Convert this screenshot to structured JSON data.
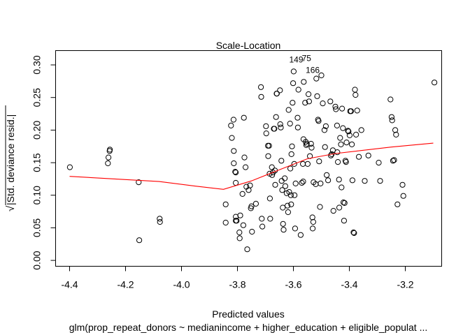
{
  "chart_data": {
    "type": "scatter",
    "title": "Scale-Location",
    "xlabel": "Predicted values",
    "subtitle": "glm(prop_repeat_donors ~ medianincome + higher_education + eligible_populat ...",
    "ylabel_radical": "√",
    "ylabel_text": "|Std. deviance resid.|",
    "xlim": [
      -4.45,
      -3.07
    ],
    "ylim": [
      -0.009,
      0.322
    ],
    "x_ticks": [
      -4.4,
      -4.2,
      -4.0,
      -3.8,
      -3.6,
      -3.4,
      -3.2
    ],
    "x_tick_labels": [
      "-4.4",
      "-4.2",
      "-4.0",
      "-3.8",
      "-3.6",
      "-3.4",
      "-3.2"
    ],
    "y_ticks": [
      0.0,
      0.05,
      0.1,
      0.15,
      0.2,
      0.25,
      0.3
    ],
    "y_tick_labels": [
      "0.00",
      "0.05",
      "0.10",
      "0.15",
      "0.20",
      "0.25",
      "0.30"
    ],
    "point_color": "#000000",
    "smooth_color": "#ff0000",
    "annotations": [
      {
        "label": "149",
        "x": -3.59,
        "y": 0.308
      },
      {
        "label": "75",
        "x": -3.553,
        "y": 0.31
      },
      {
        "label": "166",
        "x": -3.531,
        "y": 0.292
      }
    ],
    "smooth": {
      "x": [
        -4.4,
        -4.2,
        -4.08,
        -3.95,
        -3.85,
        -3.75,
        -3.65,
        -3.55,
        -3.45,
        -3.35,
        -3.25,
        -3.1
      ],
      "y": [
        0.129,
        0.124,
        0.121,
        0.114,
        0.109,
        0.122,
        0.139,
        0.156,
        0.164,
        0.169,
        0.174,
        0.18
      ]
    },
    "points": [
      [
        -4.399,
        0.143
      ],
      [
        -4.263,
        0.149
      ],
      [
        -4.261,
        0.158
      ],
      [
        -4.257,
        0.168
      ],
      [
        -4.256,
        0.17
      ],
      [
        -4.153,
        0.12
      ],
      [
        -4.151,
        0.031
      ],
      [
        -4.078,
        0.064
      ],
      [
        -4.077,
        0.059
      ],
      [
        -3.842,
        0.086
      ],
      [
        -3.842,
        0.058
      ],
      [
        -3.823,
        0.207
      ],
      [
        -3.82,
        0.188
      ],
      [
        -3.814,
        0.216
      ],
      [
        -3.813,
        0.168
      ],
      [
        -3.813,
        0.149
      ],
      [
        -3.808,
        0.136
      ],
      [
        -3.806,
        0.135
      ],
      [
        -3.806,
        0.119
      ],
      [
        -3.806,
        0.067
      ],
      [
        -3.806,
        0.061
      ],
      [
        -3.803,
        0.061
      ],
      [
        -3.793,
        0.043
      ],
      [
        -3.792,
        0.034
      ],
      [
        -3.79,
        0.069
      ],
      [
        -3.782,
        0.102
      ],
      [
        -3.779,
        0.054
      ],
      [
        -3.777,
        0.219
      ],
      [
        -3.775,
        0.158
      ],
      [
        -3.771,
        0.143
      ],
      [
        -3.768,
        0.113
      ],
      [
        -3.765,
        0.017
      ],
      [
        -3.76,
        0.108
      ],
      [
        -3.755,
        0.115
      ],
      [
        -3.752,
        0.08
      ],
      [
        -3.75,
        0.083
      ],
      [
        -3.748,
        0.044
      ],
      [
        -3.734,
        0.087
      ],
      [
        -3.716,
        0.266
      ],
      [
        -3.715,
        0.251
      ],
      [
        -3.713,
        0.064
      ],
      [
        -3.711,
        0.052
      ],
      [
        -3.698,
        0.206
      ],
      [
        -3.697,
        0.195
      ],
      [
        -3.691,
        0.176
      ],
      [
        -3.69,
        0.16
      ],
      [
        -3.687,
        0.176
      ],
      [
        -3.685,
        0.133
      ],
      [
        -3.684,
        0.095
      ],
      [
        -3.683,
        0.064
      ],
      [
        -3.677,
        0.143
      ],
      [
        -3.676,
        0.131
      ],
      [
        -3.673,
        0.135
      ],
      [
        -3.67,
        0.202
      ],
      [
        -3.668,
        0.202
      ],
      [
        -3.666,
        0.138
      ],
      [
        -3.665,
        0.116
      ],
      [
        -3.662,
        0.22
      ],
      [
        -3.66,
        0.256
      ],
      [
        -3.659,
        0.256
      ],
      [
        -3.648,
        0.261
      ],
      [
        -3.647,
        0.209
      ],
      [
        -3.645,
        0.204
      ],
      [
        -3.643,
        0.153
      ],
      [
        -3.642,
        0.122
      ],
      [
        -3.64,
        0.108
      ],
      [
        -3.638,
        0.081
      ],
      [
        -3.637,
        0.056
      ],
      [
        -3.635,
        0.047
      ],
      [
        -3.631,
        0.126
      ],
      [
        -3.629,
        0.114
      ],
      [
        -3.624,
        0.103
      ],
      [
        -3.621,
        0.084
      ],
      [
        -3.619,
        0.074
      ],
      [
        -3.617,
        0.231
      ],
      [
        -3.615,
        0.105
      ],
      [
        -3.612,
        0.21
      ],
      [
        -3.611,
        0.141
      ],
      [
        -3.609,
        0.1
      ],
      [
        -3.608,
        0.086
      ],
      [
        -3.607,
        0.163
      ],
      [
        -3.605,
        0.175
      ],
      [
        -3.603,
        0.242
      ],
      [
        -3.601,
        0.272
      ],
      [
        -3.599,
        0.29
      ],
      [
        -3.597,
        0.148
      ],
      [
        -3.596,
        0.1
      ],
      [
        -3.594,
        0.049
      ],
      [
        -3.592,
        0.118
      ],
      [
        -3.585,
        0.219
      ],
      [
        -3.584,
        0.204
      ],
      [
        -3.582,
        0.262
      ],
      [
        -3.574,
        0.039
      ],
      [
        -3.57,
        0.119
      ],
      [
        -3.566,
        0.148
      ],
      [
        -3.565,
        0.121
      ],
      [
        -3.564,
        0.186
      ],
      [
        -3.563,
        0.274
      ],
      [
        -3.558,
        0.242
      ],
      [
        -3.556,
        0.182
      ],
      [
        -3.554,
        0.177
      ],
      [
        -3.552,
        0.179
      ],
      [
        -3.549,
        0.148
      ],
      [
        -3.546,
        0.255
      ],
      [
        -3.544,
        0.244
      ],
      [
        -3.541,
        0.16
      ],
      [
        -3.537,
        0.179
      ],
      [
        -3.535,
        0.173
      ],
      [
        -3.532,
        0.066
      ],
      [
        -3.531,
        0.049
      ],
      [
        -3.529,
        0.059
      ],
      [
        -3.528,
        0.12
      ],
      [
        -3.52,
        0.117
      ],
      [
        -3.518,
        0.279
      ],
      [
        -3.515,
        0.252
      ],
      [
        -3.512,
        0.216
      ],
      [
        -3.51,
        0.214
      ],
      [
        -3.508,
        0.152
      ],
      [
        -3.505,
        0.082
      ],
      [
        -3.503,
        0.118
      ],
      [
        -3.5,
        0.284
      ],
      [
        -3.495,
        0.241
      ],
      [
        -3.489,
        0.2
      ],
      [
        -3.487,
        0.174
      ],
      [
        -3.484,
        0.206
      ],
      [
        -3.481,
        0.131
      ],
      [
        -3.476,
        0.123
      ],
      [
        -3.468,
        0.244
      ],
      [
        -3.466,
        0.161
      ],
      [
        -3.463,
        0.163
      ],
      [
        -3.459,
        0.169
      ],
      [
        -3.457,
        0.076
      ],
      [
        -3.45,
        0.236
      ],
      [
        -3.448,
        0.232
      ],
      [
        -3.444,
        0.207
      ],
      [
        -3.443,
        0.166
      ],
      [
        -3.441,
        0.151
      ],
      [
        -3.437,
        0.124
      ],
      [
        -3.436,
        0.081
      ],
      [
        -3.433,
        0.188
      ],
      [
        -3.43,
        0.178
      ],
      [
        -3.428,
        0.112
      ],
      [
        -3.426,
        0.233
      ],
      [
        -3.423,
        0.203
      ],
      [
        -3.421,
        0.089
      ],
      [
        -3.419,
        0.061
      ],
      [
        -3.417,
        0.088
      ],
      [
        -3.414,
        0.153
      ],
      [
        -3.412,
        0.151
      ],
      [
        -3.41,
        0.181
      ],
      [
        -3.405,
        0.199
      ],
      [
        -3.403,
        0.198
      ],
      [
        -3.399,
        0.192
      ],
      [
        -3.397,
        0.229
      ],
      [
        -3.394,
        0.229
      ],
      [
        -3.391,
        0.178
      ],
      [
        -3.389,
        0.123
      ],
      [
        -3.385,
        0.043
      ],
      [
        -3.383,
        0.042
      ],
      [
        -3.38,
        0.262
      ],
      [
        -3.378,
        0.254
      ],
      [
        -3.376,
        0.193
      ],
      [
        -3.372,
        0.23
      ],
      [
        -3.366,
        0.159
      ],
      [
        -3.357,
        0.2
      ],
      [
        -3.345,
        0.122
      ],
      [
        -3.332,
        0.161
      ],
      [
        -3.295,
        0.15
      ],
      [
        -3.29,
        0.122
      ],
      [
        -3.253,
        0.247
      ],
      [
        -3.249,
        0.22
      ],
      [
        -3.247,
        0.215
      ],
      [
        -3.244,
        0.153
      ],
      [
        -3.24,
        0.154
      ],
      [
        -3.236,
        0.2
      ],
      [
        -3.233,
        0.193
      ],
      [
        -3.228,
        0.086
      ],
      [
        -3.21,
        0.116
      ],
      [
        -3.207,
        0.099
      ],
      [
        -3.096,
        0.273
      ]
    ]
  }
}
